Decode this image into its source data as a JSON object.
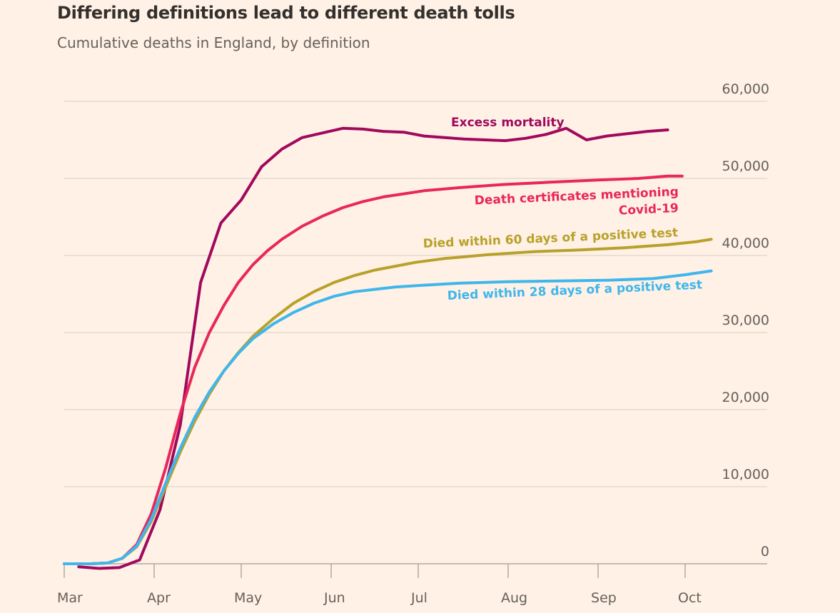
{
  "chart_data": {
    "type": "line",
    "title": "Differing definitions lead to different death tolls",
    "subtitle": "Cumulative deaths in England, by definition",
    "xlabel": "",
    "ylabel": "",
    "x_ticks": [
      "Mar",
      "Apr",
      "May",
      "Jun",
      "Jul",
      "Aug",
      "Sep",
      "Oct"
    ],
    "x_range": [
      "2020-03-01",
      "2020-10-10"
    ],
    "ylim": [
      0,
      60000
    ],
    "y_ticks": [
      {
        "value": 0,
        "label": "0"
      },
      {
        "value": 10000,
        "label": "10,000"
      },
      {
        "value": 20000,
        "label": "20,000"
      },
      {
        "value": 30000,
        "label": "30,000"
      },
      {
        "value": 40000,
        "label": "40,000"
      },
      {
        "value": 50000,
        "label": "50,000"
      },
      {
        "value": 60000,
        "label": "60,000"
      }
    ],
    "grid": true,
    "series": [
      {
        "name": "Excess mortality",
        "label_lines": [
          "Excess mortality"
        ],
        "color": "#a0095e",
        "points": [
          [
            "2020-03-06",
            -400
          ],
          [
            "2020-03-13",
            -600
          ],
          [
            "2020-03-20",
            -500
          ],
          [
            "2020-03-27",
            500
          ],
          [
            "2020-04-03",
            7000
          ],
          [
            "2020-04-10",
            18000
          ],
          [
            "2020-04-17",
            36500
          ],
          [
            "2020-04-24",
            44200
          ],
          [
            "2020-05-01",
            47200
          ],
          [
            "2020-05-08",
            51500
          ],
          [
            "2020-05-15",
            53800
          ],
          [
            "2020-05-22",
            55300
          ],
          [
            "2020-05-29",
            55900
          ],
          [
            "2020-06-05",
            56500
          ],
          [
            "2020-06-12",
            56400
          ],
          [
            "2020-06-19",
            56100
          ],
          [
            "2020-06-26",
            56000
          ],
          [
            "2020-07-03",
            55500
          ],
          [
            "2020-07-10",
            55300
          ],
          [
            "2020-07-17",
            55100
          ],
          [
            "2020-07-24",
            55000
          ],
          [
            "2020-07-31",
            54900
          ],
          [
            "2020-08-07",
            55200
          ],
          [
            "2020-08-14",
            55700
          ],
          [
            "2020-08-21",
            56500
          ],
          [
            "2020-08-28",
            55000
          ],
          [
            "2020-09-04",
            55500
          ],
          [
            "2020-09-11",
            55800
          ],
          [
            "2020-09-18",
            56100
          ],
          [
            "2020-09-25",
            56300
          ]
        ]
      },
      {
        "name": "Death certificates mentioning Covid-19",
        "label_lines": [
          "Death certificates mentioning",
          "Covid-19"
        ],
        "color": "#e8275b",
        "points": [
          [
            "2020-03-01",
            0
          ],
          [
            "2020-03-10",
            0
          ],
          [
            "2020-03-16",
            100
          ],
          [
            "2020-03-21",
            700
          ],
          [
            "2020-03-26",
            2500
          ],
          [
            "2020-03-31",
            6500
          ],
          [
            "2020-04-05",
            12500
          ],
          [
            "2020-04-10",
            19500
          ],
          [
            "2020-04-15",
            25500
          ],
          [
            "2020-04-20",
            30000
          ],
          [
            "2020-04-25",
            33500
          ],
          [
            "2020-04-30",
            36500
          ],
          [
            "2020-05-05",
            38800
          ],
          [
            "2020-05-10",
            40600
          ],
          [
            "2020-05-15",
            42100
          ],
          [
            "2020-05-22",
            43800
          ],
          [
            "2020-05-29",
            45100
          ],
          [
            "2020-06-05",
            46200
          ],
          [
            "2020-06-12",
            47000
          ],
          [
            "2020-06-19",
            47600
          ],
          [
            "2020-06-26",
            48000
          ],
          [
            "2020-07-03",
            48400
          ],
          [
            "2020-07-15",
            48800
          ],
          [
            "2020-07-30",
            49200
          ],
          [
            "2020-08-15",
            49500
          ],
          [
            "2020-09-01",
            49800
          ],
          [
            "2020-09-15",
            50000
          ],
          [
            "2020-09-25",
            50300
          ],
          [
            "2020-09-30",
            50300
          ]
        ]
      },
      {
        "name": "Died within 60 days of a positive test",
        "label_lines": [
          "Died within 60 days of a positive test"
        ],
        "color": "#b8a12b",
        "points": [
          [
            "2020-03-01",
            0
          ],
          [
            "2020-03-10",
            0
          ],
          [
            "2020-03-16",
            100
          ],
          [
            "2020-03-21",
            700
          ],
          [
            "2020-03-26",
            2200
          ],
          [
            "2020-03-31",
            5500
          ],
          [
            "2020-04-05",
            10000
          ],
          [
            "2020-04-10",
            14500
          ],
          [
            "2020-04-15",
            18500
          ],
          [
            "2020-04-20",
            22000
          ],
          [
            "2020-04-25",
            25000
          ],
          [
            "2020-04-30",
            27400
          ],
          [
            "2020-05-05",
            29500
          ],
          [
            "2020-05-12",
            31800
          ],
          [
            "2020-05-19",
            33800
          ],
          [
            "2020-05-26",
            35300
          ],
          [
            "2020-06-02",
            36500
          ],
          [
            "2020-06-09",
            37400
          ],
          [
            "2020-06-16",
            38100
          ],
          [
            "2020-06-23",
            38600
          ],
          [
            "2020-06-30",
            39100
          ],
          [
            "2020-07-10",
            39600
          ],
          [
            "2020-07-25",
            40100
          ],
          [
            "2020-08-10",
            40500
          ],
          [
            "2020-08-25",
            40700
          ],
          [
            "2020-09-10",
            41000
          ],
          [
            "2020-09-25",
            41400
          ],
          [
            "2020-10-05",
            41800
          ],
          [
            "2020-10-10",
            42100
          ]
        ]
      },
      {
        "name": "Died within 28 days of a positive test",
        "label_lines": [
          "Died within 28 days of a positive test"
        ],
        "color": "#3fb6ec",
        "points": [
          [
            "2020-03-01",
            0
          ],
          [
            "2020-03-10",
            0
          ],
          [
            "2020-03-16",
            100
          ],
          [
            "2020-03-21",
            700
          ],
          [
            "2020-03-26",
            2300
          ],
          [
            "2020-03-31",
            5800
          ],
          [
            "2020-04-05",
            10500
          ],
          [
            "2020-04-10",
            15000
          ],
          [
            "2020-04-15",
            19000
          ],
          [
            "2020-04-20",
            22300
          ],
          [
            "2020-04-25",
            25000
          ],
          [
            "2020-04-30",
            27300
          ],
          [
            "2020-05-05",
            29200
          ],
          [
            "2020-05-12",
            31100
          ],
          [
            "2020-05-19",
            32600
          ],
          [
            "2020-05-26",
            33800
          ],
          [
            "2020-06-02",
            34700
          ],
          [
            "2020-06-09",
            35300
          ],
          [
            "2020-06-16",
            35600
          ],
          [
            "2020-06-23",
            35900
          ],
          [
            "2020-07-01",
            36100
          ],
          [
            "2020-07-15",
            36400
          ],
          [
            "2020-08-01",
            36600
          ],
          [
            "2020-08-20",
            36700
          ],
          [
            "2020-09-05",
            36800
          ],
          [
            "2020-09-20",
            37000
          ],
          [
            "2020-10-01",
            37500
          ],
          [
            "2020-10-10",
            38000
          ]
        ]
      }
    ]
  }
}
